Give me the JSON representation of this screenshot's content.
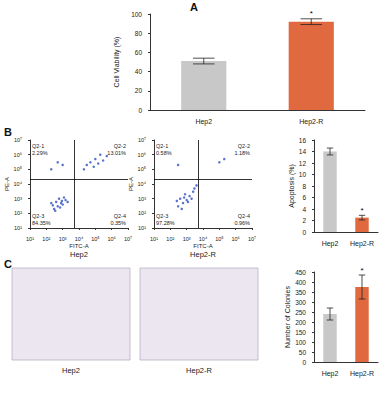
{
  "panel_labels": [
    "A",
    "B",
    "C"
  ],
  "chart_data": [
    {
      "type": "bar",
      "ylabel": "Cell Viability (%)",
      "categories": [
        "Hep2",
        "Hep2-R"
      ],
      "values": [
        51,
        92
      ],
      "errors": [
        3,
        3
      ],
      "colors": [
        "#c8c8c8",
        "#e0693f"
      ],
      "ylim": [
        0,
        100
      ],
      "yticks": [
        0,
        20,
        40,
        60,
        80,
        100
      ],
      "annotations": [
        {
          "category": "Hep2-R",
          "text": "*"
        }
      ]
    },
    {
      "type": "scatter",
      "caption": "Hep2",
      "xlabel": "FITC-A",
      "ylabel": "PE-A",
      "log": true,
      "color": "#3050c0",
      "xlim": [
        10,
        10000000
      ],
      "ylim": [
        10,
        10000000
      ],
      "xticks": [
        {
          "value": 10,
          "label": "10¹"
        },
        {
          "value": 100,
          "label": "10²"
        },
        {
          "value": 1000,
          "label": "10³"
        },
        {
          "value": 10000,
          "label": "10⁴"
        },
        {
          "value": 100000,
          "label": "10⁵"
        },
        {
          "value": 1000000,
          "label": "10⁶"
        },
        {
          "value": 10000000,
          "label": "10⁷"
        }
      ],
      "yticks": [
        {
          "value": 10,
          "label": "10¹"
        },
        {
          "value": 100,
          "label": "10²"
        },
        {
          "value": 1000,
          "label": "10³"
        },
        {
          "value": 10000,
          "label": "10⁴"
        },
        {
          "value": 100000,
          "label": "10⁵"
        },
        {
          "value": 1000000,
          "label": "10⁶"
        },
        {
          "value": 10000000,
          "label": "10⁷"
        }
      ],
      "gates": {
        "x": 5000,
        "y": 20000
      },
      "quadrants": [
        {
          "name": "Q2-1",
          "text": "2.29%"
        },
        {
          "name": "Q2-2",
          "text": "13.01%"
        },
        {
          "name": "Q2-3",
          "text": "84.35%"
        },
        {
          "name": "Q2-4",
          "text": "0.35%"
        }
      ],
      "points": [
        [
          300,
          200
        ],
        [
          500,
          300
        ],
        [
          800,
          500
        ],
        [
          400,
          600
        ],
        [
          1000,
          400
        ],
        [
          600,
          1000
        ],
        [
          250,
          350
        ],
        [
          700,
          250
        ],
        [
          1500,
          800
        ],
        [
          350,
          150
        ],
        [
          900,
          700
        ],
        [
          1200,
          1200
        ],
        [
          200,
          500
        ],
        [
          2000,
          600
        ],
        [
          30000,
          200000
        ],
        [
          100000,
          500000
        ],
        [
          300000,
          400000
        ],
        [
          50000,
          300000
        ],
        [
          200000,
          1000000
        ],
        [
          80000,
          150000
        ],
        [
          500000,
          800000
        ],
        [
          150000,
          250000
        ],
        [
          20000,
          100000
        ],
        [
          200,
          100000
        ],
        [
          500,
          300000
        ],
        [
          1000,
          200000
        ]
      ]
    },
    {
      "type": "scatter",
      "caption": "Hep2-R",
      "xlabel": "FITC-A",
      "ylabel": "PE-A",
      "log": true,
      "color": "#3050c0",
      "xlim": [
        10,
        10000000
      ],
      "ylim": [
        10,
        10000000
      ],
      "xticks": [
        {
          "value": 10,
          "label": "10¹"
        },
        {
          "value": 100,
          "label": "10²"
        },
        {
          "value": 1000,
          "label": "10³"
        },
        {
          "value": 10000,
          "label": "10⁴"
        },
        {
          "value": 100000,
          "label": "10⁵"
        },
        {
          "value": 1000000,
          "label": "10⁶"
        },
        {
          "value": 10000000,
          "label": "10⁷"
        }
      ],
      "yticks": [
        {
          "value": 10,
          "label": "10¹"
        },
        {
          "value": 100,
          "label": "10²"
        },
        {
          "value": 1000,
          "label": "10³"
        },
        {
          "value": 10000,
          "label": "10⁴"
        },
        {
          "value": 100000,
          "label": "10⁵"
        },
        {
          "value": 1000000,
          "label": "10⁶"
        },
        {
          "value": 10000000,
          "label": "10⁷"
        }
      ],
      "gates": {
        "x": 5000,
        "y": 20000
      },
      "quadrants": [
        {
          "name": "Q2-1",
          "text": "0.58%"
        },
        {
          "name": "Q2-2",
          "text": "1.18%"
        },
        {
          "name": "Q2-3",
          "text": "97.28%"
        },
        {
          "name": "Q2-4",
          "text": "0.96%"
        }
      ],
      "points": [
        [
          300,
          300
        ],
        [
          600,
          500
        ],
        [
          1000,
          800
        ],
        [
          400,
          1000
        ],
        [
          1500,
          1500
        ],
        [
          800,
          2000
        ],
        [
          2500,
          3000
        ],
        [
          500,
          200
        ],
        [
          1200,
          600
        ],
        [
          3000,
          5000
        ],
        [
          700,
          1200
        ],
        [
          2000,
          1000
        ],
        [
          250,
          700
        ],
        [
          4000,
          8000
        ],
        [
          200000,
          500000
        ],
        [
          100000,
          300000
        ],
        [
          300,
          200000
        ]
      ]
    },
    {
      "type": "bar",
      "ylabel": "Apoptosis (%)",
      "categories": [
        "Hep2",
        "Hep2-R"
      ],
      "values": [
        14,
        2.5
      ],
      "errors": [
        0.6,
        0.4
      ],
      "colors": [
        "#c8c8c8",
        "#e0693f"
      ],
      "ylim": [
        0,
        16
      ],
      "yticks": [
        0,
        2,
        4,
        6,
        8,
        10,
        12,
        14,
        16
      ],
      "annotations": [
        {
          "category": "Hep2-R",
          "text": "*"
        }
      ]
    },
    {
      "type": "bar",
      "ylabel": "Number of Colonies",
      "categories": [
        "Hep2",
        "Hep2-R"
      ],
      "values": [
        240,
        375
      ],
      "errors": [
        30,
        60
      ],
      "colors": [
        "#c8c8c8",
        "#e0693f"
      ],
      "ylim": [
        0,
        450
      ],
      "yticks": [
        0,
        50,
        100,
        150,
        200,
        250,
        300,
        350,
        400,
        450
      ],
      "annotations": [
        {
          "category": "Hep2-R",
          "text": "*"
        }
      ]
    }
  ],
  "photos": [
    {
      "caption": "Hep2"
    },
    {
      "caption": "Hep2-R"
    }
  ]
}
